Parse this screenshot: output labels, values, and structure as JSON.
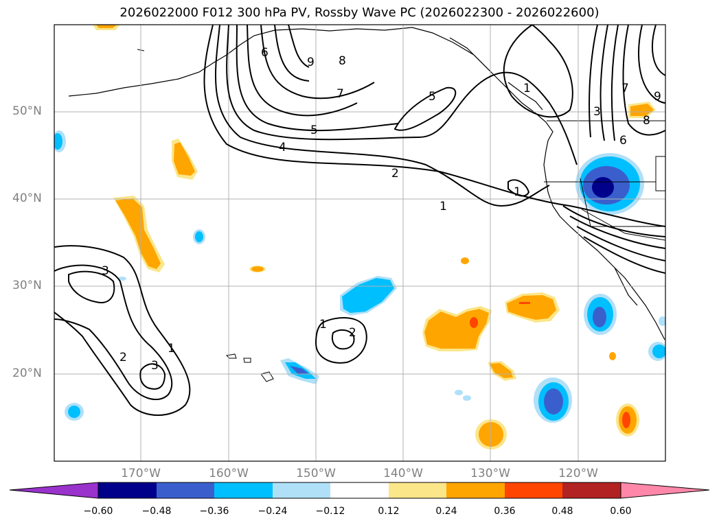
{
  "title": "2026022000 F012 300 hPa PV, Rossby Wave PC (2026022300 - 2026022600)",
  "lat_labels": [
    "50°N",
    "40°N",
    "30°N",
    "20°N"
  ],
  "lon_labels": [
    "170°W",
    "160°W",
    "150°W",
    "140°W",
    "130°W",
    "120°W"
  ],
  "colorbar": {
    "ticks": [
      "−0.60",
      "−0.48",
      "−0.36",
      "−0.24",
      "−0.12",
      "0.12",
      "0.24",
      "0.36",
      "0.48",
      "0.60"
    ],
    "colors": [
      "#9933cc",
      "#00008b",
      "#3a5fcd",
      "#00bfff",
      "#b0e0f8",
      "#ffffff",
      "#fbe68a",
      "#ffa500",
      "#ff4500",
      "#b22222",
      "#ff88aa"
    ]
  },
  "contour_labels": [
    "9",
    "8",
    "7",
    "6",
    "5",
    "4",
    "2",
    "1",
    "5",
    "1",
    "1",
    "7",
    "9",
    "8",
    "3",
    "6",
    "3",
    "2",
    "3",
    "1",
    "1",
    "2"
  ],
  "colors": {
    "grid": "#b0b0b0",
    "contour": "#000000",
    "frame": "#000000"
  }
}
